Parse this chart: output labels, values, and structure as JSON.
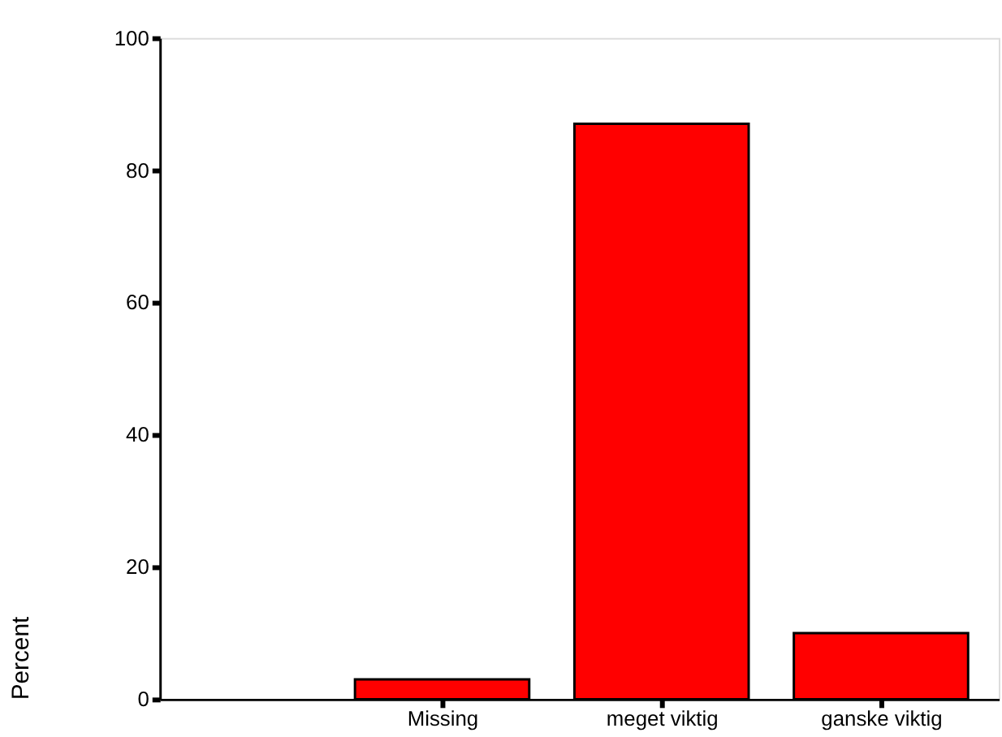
{
  "chart_data": {
    "type": "bar",
    "ylabel": "Percent",
    "categories": [
      "Missing",
      "meget viktig",
      "ganske viktig"
    ],
    "values": [
      3,
      87,
      10
    ],
    "color": "#ff0000",
    "ylim": [
      0,
      100
    ],
    "yticks": [
      0,
      20,
      40,
      60,
      80,
      100
    ],
    "grid": false
  }
}
